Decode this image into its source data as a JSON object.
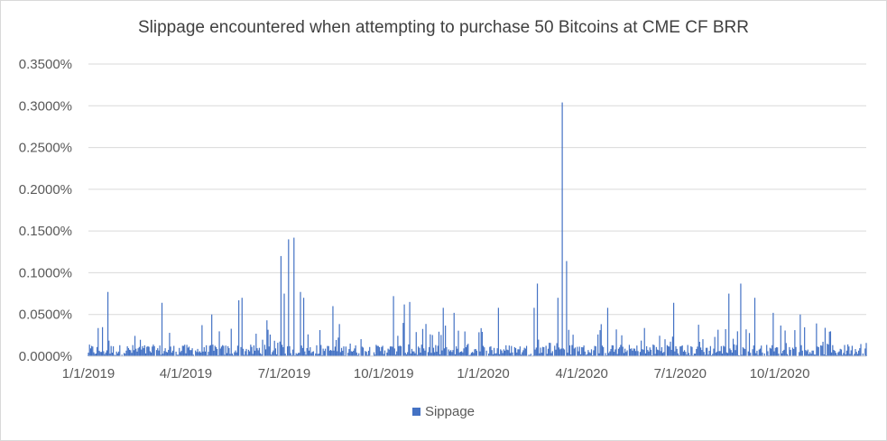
{
  "chart_data": {
    "type": "bar",
    "title": "Slippage encountered when attempting to purchase 50 Bitcoins at CME CF BRR",
    "xlabel": "",
    "ylabel": "",
    "ylim": [
      0,
      0.0035
    ],
    "yticks": [
      "0.0000%",
      "0.0500%",
      "0.1000%",
      "0.1500%",
      "0.2000%",
      "0.2500%",
      "0.3000%",
      "0.3500%"
    ],
    "xticks": [
      "1/1/2019",
      "4/1/2019",
      "7/1/2019",
      "10/1/2019",
      "1/1/2020",
      "4/1/2020",
      "7/1/2020",
      "10/1/2020"
    ],
    "x_start": "2019-01-01",
    "x_end": "2020-12-20",
    "series": [
      {
        "name": "Sippage",
        "color": "#4472c4",
        "peaks": [
          {
            "date": "2019-01-19",
            "value": 0.00077
          },
          {
            "date": "2019-03-10",
            "value": 0.00064
          },
          {
            "date": "2019-04-25",
            "value": 0.0005
          },
          {
            "date": "2019-05-20",
            "value": 0.00067
          },
          {
            "date": "2019-05-23",
            "value": 0.0007
          },
          {
            "date": "2019-06-15",
            "value": 0.00043
          },
          {
            "date": "2019-06-28",
            "value": 0.0012
          },
          {
            "date": "2019-07-01",
            "value": 0.00075
          },
          {
            "date": "2019-07-05",
            "value": 0.0014
          },
          {
            "date": "2019-07-10",
            "value": 0.00142
          },
          {
            "date": "2019-07-16",
            "value": 0.00077
          },
          {
            "date": "2019-07-19",
            "value": 0.0007
          },
          {
            "date": "2019-08-15",
            "value": 0.0006
          },
          {
            "date": "2019-10-10",
            "value": 0.00072
          },
          {
            "date": "2019-10-20",
            "value": 0.00062
          },
          {
            "date": "2019-10-25",
            "value": 0.00065
          },
          {
            "date": "2019-11-25",
            "value": 0.00058
          },
          {
            "date": "2019-12-05",
            "value": 0.00052
          },
          {
            "date": "2020-01-15",
            "value": 0.00058
          },
          {
            "date": "2020-02-17",
            "value": 0.00058
          },
          {
            "date": "2020-02-20",
            "value": 0.00087
          },
          {
            "date": "2020-03-10",
            "value": 0.0007
          },
          {
            "date": "2020-03-14",
            "value": 0.00304
          },
          {
            "date": "2020-03-18",
            "value": 0.00114
          },
          {
            "date": "2020-04-25",
            "value": 0.00058
          },
          {
            "date": "2020-06-25",
            "value": 0.00064
          },
          {
            "date": "2020-08-15",
            "value": 0.00075
          },
          {
            "date": "2020-08-26",
            "value": 0.00087
          },
          {
            "date": "2020-09-08",
            "value": 0.0007
          },
          {
            "date": "2020-09-25",
            "value": 0.00052
          },
          {
            "date": "2020-10-20",
            "value": 0.0005
          }
        ],
        "baseline_max": 0.0004
      }
    ],
    "legend": "bottom-center"
  }
}
